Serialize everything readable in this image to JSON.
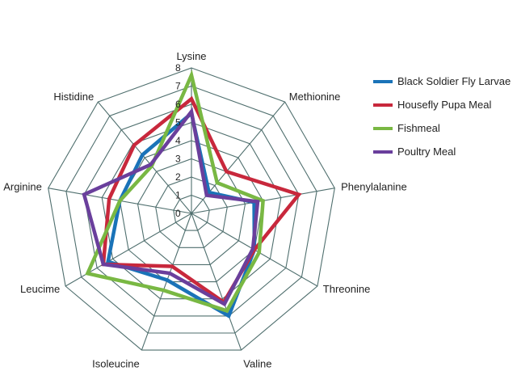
{
  "chart_data": {
    "type": "radar",
    "title": "",
    "axes": [
      "Lysine",
      "Methionine",
      "Phenylalanine",
      "Threonine",
      "Valine",
      "Isoleucine",
      "Leucime",
      "Arginine",
      "Histidine"
    ],
    "scale": {
      "min": 0,
      "max": 8,
      "ticks": [
        "0",
        "1",
        "2",
        "3",
        "4",
        "5",
        "6",
        "7",
        "8"
      ]
    },
    "grid": true,
    "legend_position": "top-right",
    "series": [
      {
        "name": "Black Soldier Fly Larvae",
        "color": "#1a73b8",
        "values": [
          5.5,
          1.5,
          3.5,
          4.0,
          6.0,
          3.9,
          5.3,
          4.0,
          4.2
        ]
      },
      {
        "name": "Housefly Pupa Meal",
        "color": "#c8283c",
        "values": [
          6.3,
          3.0,
          6.0,
          4.0,
          5.2,
          3.1,
          5.6,
          4.6,
          4.9
        ]
      },
      {
        "name": "Fishmeal",
        "color": "#79b843",
        "values": [
          7.6,
          2.2,
          4.0,
          4.3,
          5.7,
          4.5,
          6.6,
          4.0,
          3.4
        ]
      },
      {
        "name": "Poultry Meal",
        "color": "#6a3f9c",
        "values": [
          5.6,
          1.3,
          3.7,
          3.9,
          5.3,
          3.5,
          5.6,
          6.0,
          3.5
        ]
      }
    ]
  }
}
